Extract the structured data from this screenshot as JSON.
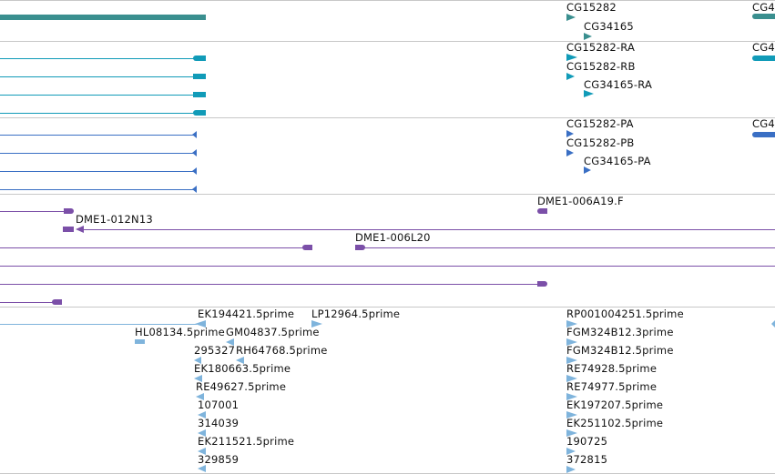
{
  "colors": {
    "gene": "#3a8f8f",
    "transcript": "#119bb8",
    "protein": "#3a6fc4",
    "clone": "#7b4fa8",
    "est": "#7fb4dc",
    "separator": "#c8c8c8"
  },
  "genes": {
    "labels": [
      "CG15282",
      "CG34165",
      "CG4"
    ]
  },
  "transcripts": {
    "labels": [
      "CG15282-RA",
      "CG15282-RB",
      "CG34165-RA",
      "CG4"
    ]
  },
  "proteins": {
    "labels": [
      "CG15282-PA",
      "CG15282-PB",
      "CG34165-PA",
      "CG4"
    ]
  },
  "clones": {
    "labels": [
      "DME1-006A19.F",
      "DME1-012N13",
      "DME1-006L20"
    ]
  },
  "ests": {
    "left_labels": [
      "EK194421.5prime",
      "LP12964.5prime",
      "HL08134.5prime",
      "GM04837.5prime",
      "295327",
      "RH64768.5prime",
      "EK180663.5prime",
      "RE49627.5prime",
      "107001",
      "314039",
      "EK211521.5prime",
      "329859"
    ],
    "right_labels": [
      "RP001004251.5prime",
      "FGM324B12.3prime",
      "FGM324B12.5prime",
      "RE74928.5prime",
      "RE74977.5prime",
      "EK197207.5prime",
      "EK251102.5prime",
      "190725",
      "372815"
    ]
  }
}
